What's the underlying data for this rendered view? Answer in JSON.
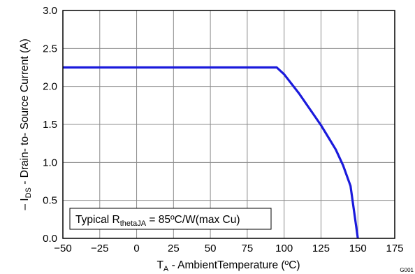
{
  "chart_data": {
    "type": "line",
    "xlabel": {
      "main": "T",
      "sub": "A",
      "rest": " - AmbientTemperature (ºC)"
    },
    "ylabel": {
      "prefix": "– I",
      "sub": "DS",
      "rest": " - Drain- to- Source Current (A)"
    },
    "xlim": [
      -50,
      175
    ],
    "ylim": [
      0,
      3.0
    ],
    "x_ticks": [
      -50,
      -25,
      0,
      25,
      50,
      75,
      100,
      125,
      150,
      175
    ],
    "x_tick_labels": [
      "−50",
      "−25",
      "0",
      "25",
      "50",
      "75",
      "100",
      "125",
      "150",
      "175"
    ],
    "y_ticks": [
      0,
      0.5,
      1.0,
      1.5,
      2.0,
      2.5,
      3.0
    ],
    "y_tick_labels": [
      "0.0",
      "0.5",
      "1.0",
      "1.5",
      "2.0",
      "2.5",
      "3.0"
    ],
    "grid": true,
    "series": [
      {
        "color": "#1a1adc",
        "x": [
          -50,
          95,
          100,
          110,
          120,
          125,
          130,
          135,
          140,
          145,
          150
        ],
        "y": [
          2.25,
          2.25,
          2.16,
          1.91,
          1.63,
          1.49,
          1.33,
          1.17,
          0.96,
          0.69,
          0.0
        ]
      }
    ],
    "annotation": {
      "prefix": "Typical R",
      "sub": "thetaJA",
      "rest": " = 85ºC/W(max Cu)"
    },
    "figure_id": "G001"
  }
}
